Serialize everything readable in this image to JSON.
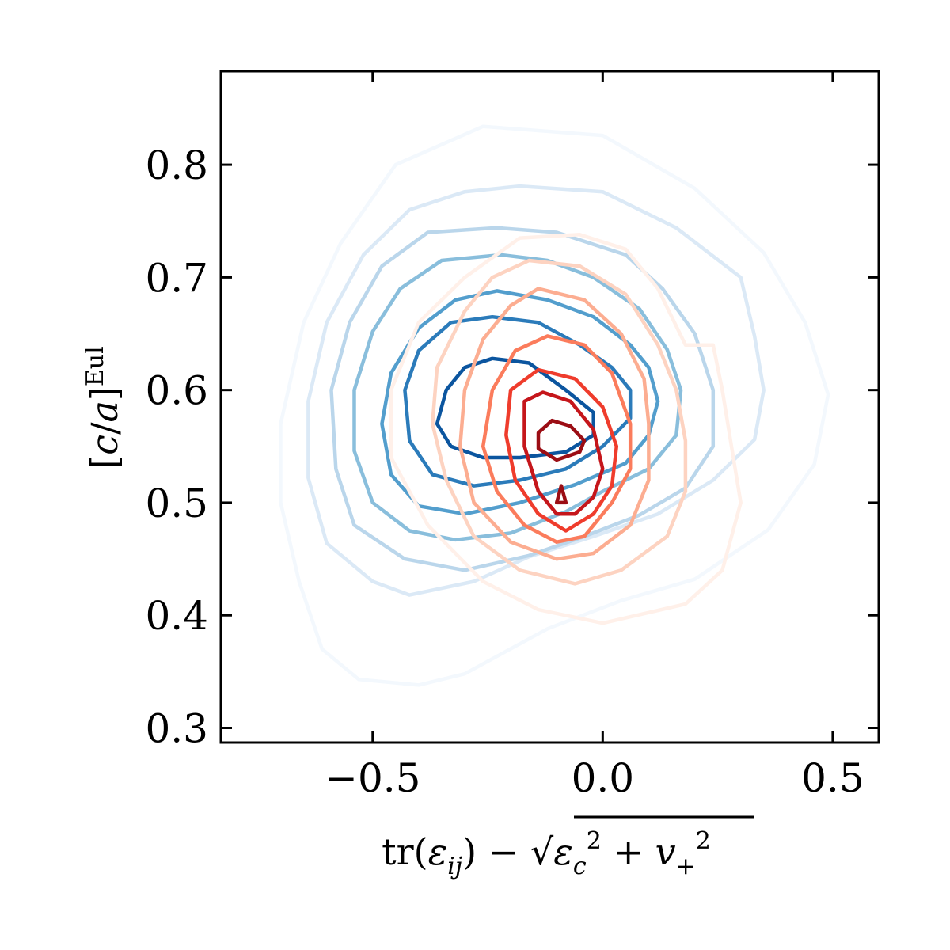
{
  "chart_data": {
    "type": "contour",
    "xlabel": "tr(ε_ij) − √(ε_c² + v_+²)",
    "ylabel": "[c/a]^Eul",
    "xlim": [
      -0.83,
      0.6
    ],
    "ylim": [
      0.287,
      0.883
    ],
    "xticks": [
      -0.5,
      0.0,
      0.5
    ],
    "xtick_labels": [
      "−0.5",
      "0.0",
      "0.5"
    ],
    "yticks": [
      0.3,
      0.4,
      0.5,
      0.6,
      0.7,
      0.8
    ],
    "ytick_labels": [
      "0.3",
      "0.4",
      "0.5",
      "0.6",
      "0.7",
      "0.8"
    ],
    "grid": false,
    "series": [
      {
        "colormap": "Blues",
        "center": [
          -0.22,
          0.598
        ],
        "levels": [
          {
            "color": "#f3f8fd",
            "points": [
              [
                -0.26,
                0.834
              ],
              [
                0.0,
                0.826
              ],
              [
                0.2,
                0.779
              ],
              [
                0.35,
                0.722
              ],
              [
                0.44,
                0.66
              ],
              [
                0.49,
                0.596
              ],
              [
                0.46,
                0.534
              ],
              [
                0.36,
                0.476
              ],
              [
                0.2,
                0.432
              ],
              [
                0.04,
                0.413
              ],
              [
                -0.12,
                0.388
              ],
              [
                -0.3,
                0.348
              ],
              [
                -0.4,
                0.338
              ],
              [
                -0.53,
                0.343
              ],
              [
                -0.61,
                0.37
              ],
              [
                -0.66,
                0.43
              ],
              [
                -0.7,
                0.5
              ],
              [
                -0.7,
                0.57
              ],
              [
                -0.65,
                0.66
              ],
              [
                -0.57,
                0.73
              ],
              [
                -0.45,
                0.8
              ]
            ]
          },
          {
            "color": "#dbe9f6",
            "points": [
              [
                -0.3,
                0.776
              ],
              [
                -0.18,
                0.781
              ],
              [
                0.0,
                0.776
              ],
              [
                0.16,
                0.744
              ],
              [
                0.3,
                0.7
              ],
              [
                0.33,
                0.648
              ],
              [
                0.35,
                0.6
              ],
              [
                0.33,
                0.556
              ],
              [
                0.24,
                0.52
              ],
              [
                0.12,
                0.49
              ],
              [
                -0.02,
                0.47
              ],
              [
                -0.16,
                0.452
              ],
              [
                -0.28,
                0.43
              ],
              [
                -0.42,
                0.418
              ],
              [
                -0.5,
                0.43
              ],
              [
                -0.6,
                0.464
              ],
              [
                -0.64,
                0.522
              ],
              [
                -0.64,
                0.59
              ],
              [
                -0.6,
                0.66
              ],
              [
                -0.52,
                0.72
              ],
              [
                -0.42,
                0.76
              ]
            ]
          },
          {
            "color": "#bad6eb",
            "points": [
              [
                -0.23,
                0.744
              ],
              [
                -0.1,
                0.74
              ],
              [
                0.05,
                0.72
              ],
              [
                0.13,
                0.69
              ],
              [
                0.2,
                0.65
              ],
              [
                0.24,
                0.6
              ],
              [
                0.24,
                0.55
              ],
              [
                0.18,
                0.513
              ],
              [
                0.08,
                0.489
              ],
              [
                -0.04,
                0.47
              ],
              [
                -0.16,
                0.453
              ],
              [
                -0.3,
                0.44
              ],
              [
                -0.43,
                0.45
              ],
              [
                -0.54,
                0.48
              ],
              [
                -0.58,
                0.53
              ],
              [
                -0.59,
                0.6
              ],
              [
                -0.55,
                0.66
              ],
              [
                -0.48,
                0.71
              ],
              [
                -0.38,
                0.74
              ]
            ]
          },
          {
            "color": "#89bedc",
            "points": [
              [
                -0.22,
                0.72
              ],
              [
                -0.12,
                0.715
              ],
              [
                -0.02,
                0.7
              ],
              [
                0.08,
                0.672
              ],
              [
                0.14,
                0.636
              ],
              [
                0.17,
                0.6
              ],
              [
                0.16,
                0.56
              ],
              [
                0.1,
                0.53
              ],
              [
                0.0,
                0.51
              ],
              [
                -0.08,
                0.492
              ],
              [
                -0.2,
                0.473
              ],
              [
                -0.32,
                0.467
              ],
              [
                -0.42,
                0.475
              ],
              [
                -0.5,
                0.5
              ],
              [
                -0.54,
                0.546
              ],
              [
                -0.54,
                0.6
              ],
              [
                -0.5,
                0.652
              ],
              [
                -0.44,
                0.69
              ],
              [
                -0.35,
                0.715
              ]
            ]
          },
          {
            "color": "#539ecd",
            "points": [
              [
                -0.23,
                0.688
              ],
              [
                -0.12,
                0.68
              ],
              [
                -0.02,
                0.665
              ],
              [
                0.06,
                0.64
              ],
              [
                0.1,
                0.62
              ],
              [
                0.12,
                0.59
              ],
              [
                0.1,
                0.56
              ],
              [
                0.05,
                0.535
              ],
              [
                -0.06,
                0.516
              ],
              [
                -0.18,
                0.5
              ],
              [
                -0.3,
                0.49
              ],
              [
                -0.4,
                0.497
              ],
              [
                -0.46,
                0.525
              ],
              [
                -0.48,
                0.57
              ],
              [
                -0.46,
                0.615
              ],
              [
                -0.4,
                0.655
              ],
              [
                -0.32,
                0.68
              ]
            ]
          },
          {
            "color": "#2b7bba",
            "points": [
              [
                -0.24,
                0.665
              ],
              [
                -0.14,
                0.66
              ],
              [
                -0.05,
                0.64
              ],
              [
                0.02,
                0.62
              ],
              [
                0.06,
                0.6
              ],
              [
                0.06,
                0.575
              ],
              [
                0.0,
                0.55
              ],
              [
                -0.08,
                0.53
              ],
              [
                -0.18,
                0.52
              ],
              [
                -0.28,
                0.515
              ],
              [
                -0.37,
                0.525
              ],
              [
                -0.42,
                0.555
              ],
              [
                -0.43,
                0.6
              ],
              [
                -0.4,
                0.635
              ],
              [
                -0.33,
                0.66
              ]
            ]
          },
          {
            "color": "#0b559f",
            "points": [
              [
                -0.24,
                0.628
              ],
              [
                -0.16,
                0.624
              ],
              [
                -0.08,
                0.6
              ],
              [
                -0.02,
                0.58
              ],
              [
                -0.02,
                0.56
              ],
              [
                -0.08,
                0.545
              ],
              [
                -0.18,
                0.54
              ],
              [
                -0.26,
                0.54
              ],
              [
                -0.33,
                0.55
              ],
              [
                -0.36,
                0.57
              ],
              [
                -0.34,
                0.6
              ],
              [
                -0.3,
                0.62
              ]
            ]
          }
        ]
      },
      {
        "colormap": "Reds",
        "center": [
          -0.1,
          0.55
        ],
        "levels": [
          {
            "color": "#fff0e9",
            "points": [
              [
                -0.18,
                0.735
              ],
              [
                -0.05,
                0.738
              ],
              [
                0.05,
                0.725
              ],
              [
                0.12,
                0.69
              ],
              [
                0.18,
                0.64
              ],
              [
                0.24,
                0.64
              ],
              [
                0.26,
                0.6
              ],
              [
                0.28,
                0.55
              ],
              [
                0.3,
                0.5
              ],
              [
                0.26,
                0.44
              ],
              [
                0.18,
                0.41
              ],
              [
                0.0,
                0.393
              ],
              [
                -0.14,
                0.405
              ],
              [
                -0.26,
                0.43
              ],
              [
                -0.38,
                0.48
              ],
              [
                -0.46,
                0.54
              ],
              [
                -0.46,
                0.6
              ],
              [
                -0.4,
                0.66
              ],
              [
                -0.3,
                0.7
              ]
            ]
          },
          {
            "color": "#fdd3c1",
            "points": [
              [
                -0.16,
                0.715
              ],
              [
                -0.05,
                0.71
              ],
              [
                0.05,
                0.685
              ],
              [
                0.12,
                0.64
              ],
              [
                0.16,
                0.6
              ],
              [
                0.18,
                0.555
              ],
              [
                0.18,
                0.51
              ],
              [
                0.14,
                0.47
              ],
              [
                0.04,
                0.44
              ],
              [
                -0.06,
                0.428
              ],
              [
                -0.18,
                0.44
              ],
              [
                -0.28,
                0.47
              ],
              [
                -0.34,
                0.52
              ],
              [
                -0.37,
                0.57
              ],
              [
                -0.36,
                0.62
              ],
              [
                -0.3,
                0.67
              ],
              [
                -0.24,
                0.7
              ]
            ]
          },
          {
            "color": "#fcad91",
            "points": [
              [
                -0.14,
                0.69
              ],
              [
                -0.04,
                0.68
              ],
              [
                0.04,
                0.65
              ],
              [
                0.09,
                0.61
              ],
              [
                0.1,
                0.57
              ],
              [
                0.1,
                0.52
              ],
              [
                0.06,
                0.48
              ],
              [
                -0.02,
                0.455
              ],
              [
                -0.1,
                0.45
              ],
              [
                -0.2,
                0.465
              ],
              [
                -0.28,
                0.5
              ],
              [
                -0.31,
                0.55
              ],
              [
                -0.3,
                0.6
              ],
              [
                -0.26,
                0.645
              ],
              [
                -0.2,
                0.675
              ]
            ]
          },
          {
            "color": "#fb7c5c",
            "points": [
              [
                -0.12,
                0.648
              ],
              [
                -0.04,
                0.64
              ],
              [
                0.02,
                0.615
              ],
              [
                0.06,
                0.57
              ],
              [
                0.06,
                0.53
              ],
              [
                0.02,
                0.5
              ],
              [
                -0.04,
                0.47
              ],
              [
                -0.1,
                0.465
              ],
              [
                -0.17,
                0.48
              ],
              [
                -0.23,
                0.51
              ],
              [
                -0.26,
                0.55
              ],
              [
                -0.24,
                0.6
              ],
              [
                -0.19,
                0.635
              ]
            ]
          },
          {
            "color": "#ef3c2c",
            "points": [
              [
                -0.14,
                0.618
              ],
              [
                -0.06,
                0.61
              ],
              [
                0.0,
                0.585
              ],
              [
                0.03,
                0.55
              ],
              [
                0.02,
                0.515
              ],
              [
                -0.02,
                0.49
              ],
              [
                -0.08,
                0.475
              ],
              [
                -0.14,
                0.49
              ],
              [
                -0.19,
                0.52
              ],
              [
                -0.21,
                0.56
              ],
              [
                -0.2,
                0.6
              ]
            ]
          },
          {
            "color": "#c5161b",
            "points": [
              [
                -0.13,
                0.598
              ],
              [
                -0.07,
                0.59
              ],
              [
                -0.02,
                0.565
              ],
              [
                0.0,
                0.53
              ],
              [
                -0.02,
                0.505
              ],
              [
                -0.06,
                0.49
              ],
              [
                -0.1,
                0.49
              ],
              [
                -0.14,
                0.51
              ],
              [
                -0.17,
                0.55
              ],
              [
                -0.17,
                0.59
              ]
            ]
          },
          {
            "color": "#9b0d14",
            "points": [
              [
                -0.11,
                0.573
              ],
              [
                -0.07,
                0.568
              ],
              [
                -0.04,
                0.555
              ],
              [
                -0.05,
                0.545
              ],
              [
                -0.1,
                0.538
              ],
              [
                -0.14,
                0.548
              ],
              [
                -0.14,
                0.562
              ]
            ]
          },
          {
            "color": "#9b0d14",
            "points": [
              [
                -0.09,
                0.515
              ],
              [
                -0.08,
                0.5
              ],
              [
                -0.1,
                0.5
              ]
            ]
          }
        ]
      }
    ]
  }
}
